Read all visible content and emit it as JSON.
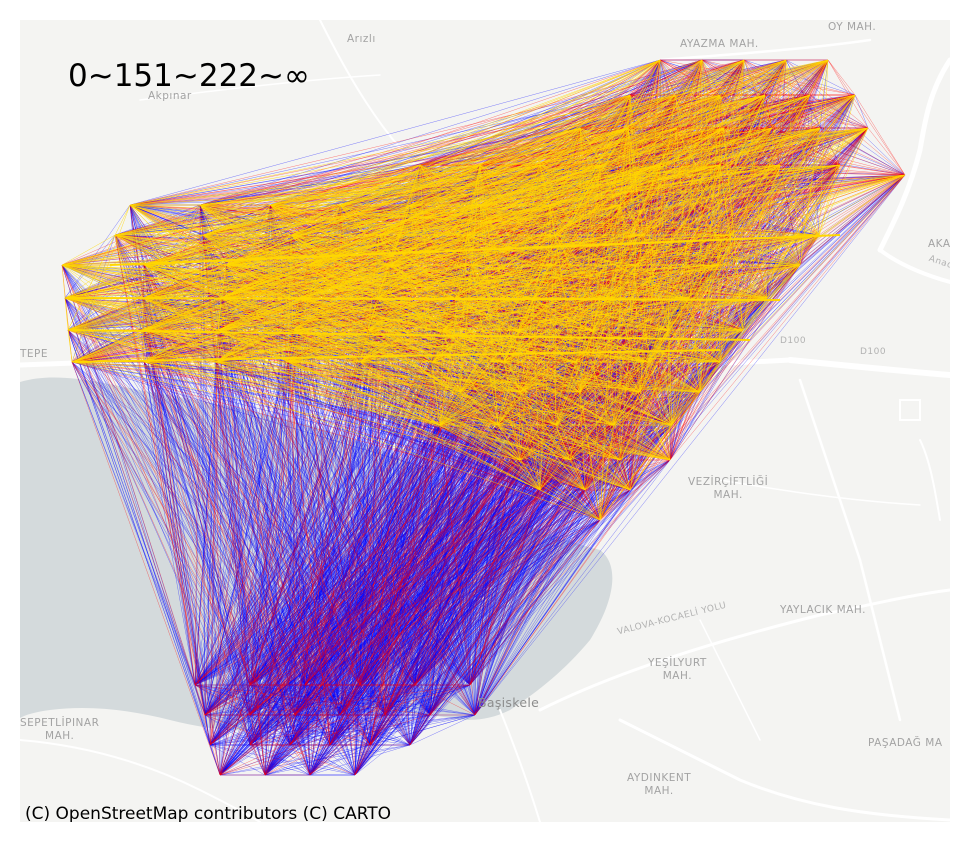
{
  "legend": {
    "title": "0~151~222~∞",
    "bins": [
      {
        "label": "0~151",
        "color": "#0000ff"
      },
      {
        "label": "151~222",
        "color": "#ff0000"
      },
      {
        "label": "222~∞",
        "color": "#ffd700"
      }
    ]
  },
  "attribution": "(C) OpenStreetMap contributors (C) CARTO",
  "places": {
    "arizli": "Arızlı",
    "akpinar": "Akpınar",
    "ayazma": "AYAZMA MAH.",
    "oy": "OY MAH.",
    "akar": "AKAR",
    "anadolu": "Anadolu",
    "tepe": "TEPE",
    "vezirciftligi_1": "VEZİRÇİFTLİĞİ",
    "vezirciftligi_2": "MAH.",
    "yaylacik": "YAYLACIK MAH.",
    "valova": "VALOVA-KOCAELİ YOLU",
    "yesilyurt_1": "YEŞİLYURT",
    "yesilyurt_2": "MAH.",
    "basiskele": "Başiskele",
    "sepetlipinar_1": "SEPETLİPINAR",
    "sepetlipinar_2": "MAH.",
    "pasadag": "PAŞADAĞ MA",
    "aydinkent_1": "AYDINKENT",
    "aydinkent_2": "MAH.",
    "d100_1": "D100",
    "d100_2": "D100"
  },
  "colors": {
    "background": "#f4f4f2",
    "water": "#d4dadc",
    "road": "#ffffff",
    "low": "#0000ff",
    "mid": "#ff0000",
    "high": "#ffd700"
  }
}
